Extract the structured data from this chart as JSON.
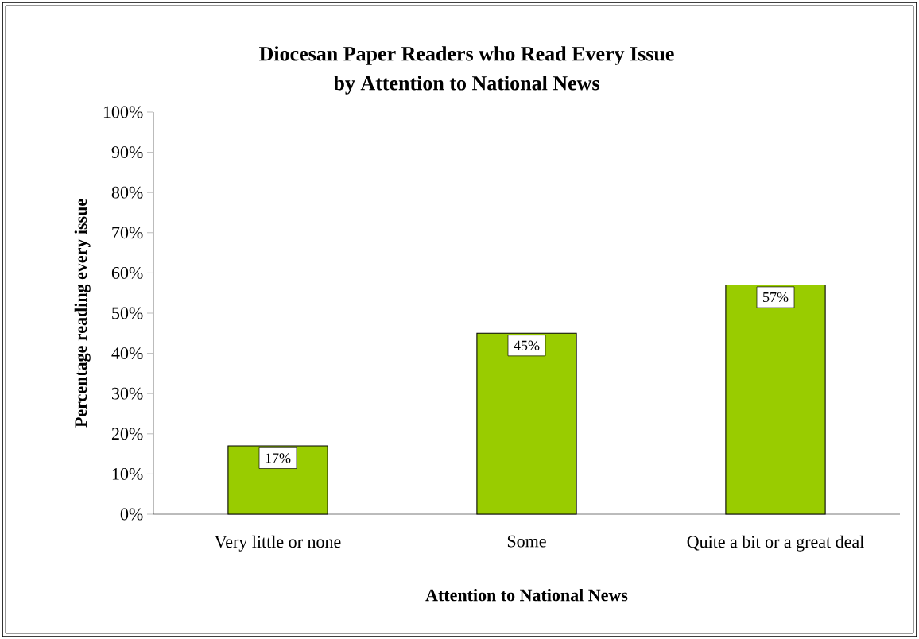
{
  "chart_data": {
    "type": "bar",
    "title": "Diocesan Paper Readers who Read Every Issue",
    "subtitle": "by Attention to National News",
    "xlabel": "Attention to National News",
    "ylabel": "Percentage reading every issue",
    "categories": [
      "Very little or none",
      "Some",
      "Quite a bit or a great deal"
    ],
    "values": [
      17,
      45,
      57
    ],
    "color": "#99cc00",
    "value_labels": [
      "17%",
      "45%",
      "57%"
    ],
    "ylim": [
      0,
      100
    ],
    "yticks": [
      {
        "value": 0,
        "label": "0%"
      },
      {
        "value": 10,
        "label": "10%"
      },
      {
        "value": 20,
        "label": "20%"
      },
      {
        "value": 30,
        "label": "30%"
      },
      {
        "value": 40,
        "label": "40%"
      },
      {
        "value": 50,
        "label": "50%"
      },
      {
        "value": 60,
        "label": "60%"
      },
      {
        "value": 70,
        "label": "70%"
      },
      {
        "value": 80,
        "label": "80%"
      },
      {
        "value": 90,
        "label": "90%"
      },
      {
        "value": 100,
        "label": "100%"
      }
    ],
    "grid": false
  }
}
